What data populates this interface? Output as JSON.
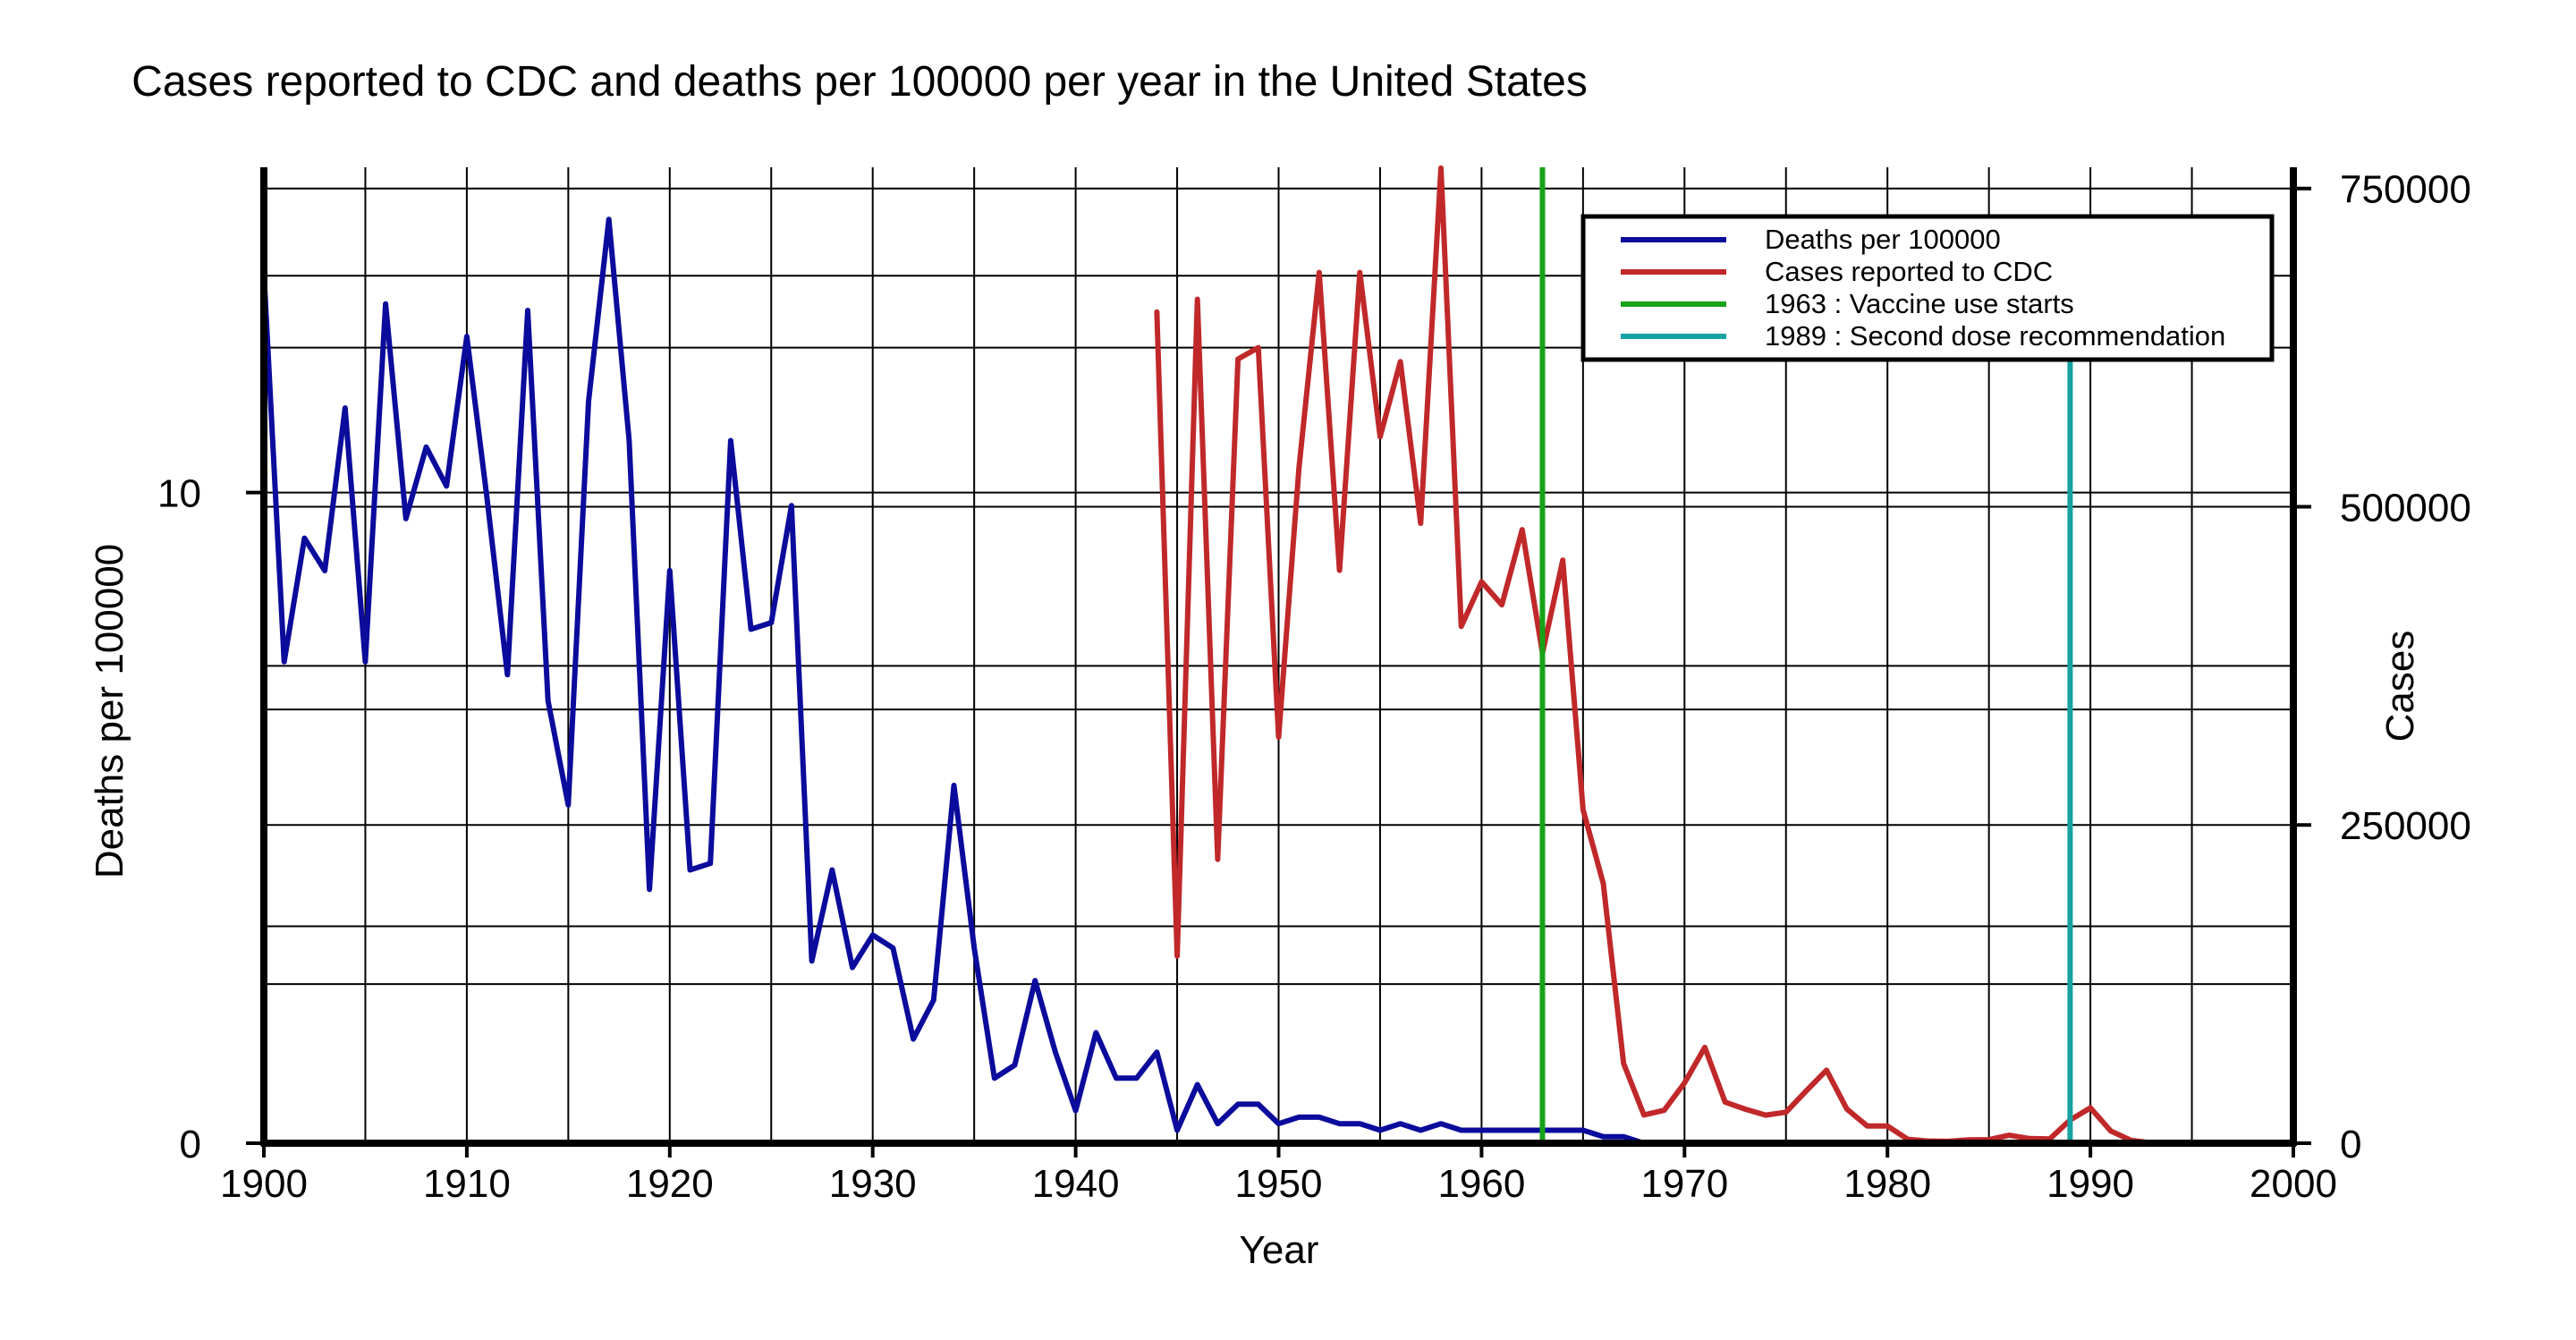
{
  "chart_data": {
    "type": "line",
    "title": "Cases reported to CDC and deaths per 100000 per year in the United States",
    "xlabel": "Year",
    "ylabel_left": "Deaths per 100000",
    "ylabel_right": "Cases",
    "xlim": [
      1900,
      2000
    ],
    "ylim_left": [
      0,
      15
    ],
    "ylim_right": [
      0,
      766666
    ],
    "x_ticks": [
      "1900",
      "1910",
      "1920",
      "1930",
      "1940",
      "1950",
      "1960",
      "1970",
      "1980",
      "1990",
      "2000"
    ],
    "left_tick_labels": [
      {
        "value": 0,
        "label": "0"
      },
      {
        "value": 10,
        "label": "10"
      }
    ],
    "right_tick_labels": [
      {
        "value": 0,
        "label": "0"
      },
      {
        "value": 250000,
        "label": "250000"
      },
      {
        "value": 500000,
        "label": "500000"
      },
      {
        "value": 750000,
        "label": "750000"
      }
    ],
    "grid": true,
    "legend_position": "top-right",
    "series": [
      {
        "name": "Deaths per 100000",
        "axis": "left",
        "color": "#0b0b9c",
        "x": [
          1900,
          1901,
          1902,
          1903,
          1904,
          1905,
          1906,
          1907,
          1908,
          1909,
          1910,
          1911,
          1912,
          1913,
          1914,
          1915,
          1916,
          1917,
          1918,
          1919,
          1920,
          1921,
          1922,
          1923,
          1924,
          1925,
          1926,
          1927,
          1928,
          1929,
          1930,
          1931,
          1932,
          1933,
          1934,
          1935,
          1936,
          1937,
          1938,
          1939,
          1940,
          1941,
          1942,
          1943,
          1944,
          1945,
          1946,
          1947,
          1948,
          1949,
          1950,
          1951,
          1952,
          1953,
          1954,
          1955,
          1956,
          1957,
          1958,
          1959,
          1960,
          1961,
          1962,
          1963,
          1964,
          1965,
          1966,
          1967,
          1968,
          1969,
          1970
        ],
        "values": [
          13.4,
          7.4,
          9.3,
          8.8,
          11.3,
          7.4,
          12.9,
          9.6,
          10.7,
          10.1,
          12.4,
          9.9,
          7.2,
          12.8,
          6.8,
          5.2,
          11.4,
          14.2,
          10.8,
          3.9,
          8.8,
          4.2,
          4.3,
          10.8,
          7.9,
          8.0,
          9.8,
          2.8,
          4.2,
          2.7,
          3.2,
          3.0,
          1.6,
          2.2,
          5.5,
          3.0,
          1.0,
          1.2,
          2.5,
          1.4,
          0.5,
          1.7,
          1.0,
          1.0,
          1.4,
          0.2,
          0.9,
          0.3,
          0.6,
          0.6,
          0.3,
          0.4,
          0.4,
          0.3,
          0.3,
          0.2,
          0.3,
          0.2,
          0.3,
          0.2,
          0.2,
          0.2,
          0.2,
          0.2,
          0.2,
          0.2,
          0.1,
          0.1,
          0.0,
          0.0,
          0.0
        ]
      },
      {
        "name": "Cases reported to CDC",
        "axis": "right",
        "color": "#c0282a",
        "x": [
          1944,
          1945,
          1946,
          1947,
          1948,
          1949,
          1950,
          1951,
          1952,
          1953,
          1954,
          1955,
          1956,
          1957,
          1958,
          1959,
          1960,
          1961,
          1962,
          1963,
          1964,
          1965,
          1966,
          1967,
          1968,
          1969,
          1970,
          1971,
          1972,
          1973,
          1974,
          1975,
          1976,
          1977,
          1978,
          1979,
          1980,
          1981,
          1982,
          1983,
          1984,
          1985,
          1986,
          1987,
          1988,
          1989,
          1990,
          1991,
          1992,
          1993
        ],
        "values": [
          653000,
          147000,
          663000,
          223000,
          616000,
          625000,
          319000,
          530000,
          684000,
          450000,
          684000,
          555000,
          614000,
          487000,
          766000,
          406000,
          441000,
          423000,
          482000,
          385000,
          458000,
          262000,
          204000,
          62705,
          22231,
          25826,
          47351,
          75290,
          32275,
          26690,
          22094,
          24374,
          41126,
          57345,
          26871,
          13597,
          13506,
          3124,
          1714,
          1497,
          2587,
          2822,
          6282,
          3655,
          3396,
          18193,
          27786,
          9643,
          2237,
          312
        ]
      }
    ],
    "vlines": [
      {
        "x": 1963,
        "label": "1963 : Vaccine use starts",
        "color": "#17a317"
      },
      {
        "x": 1989,
        "label": "1989 : Second dose recommendation",
        "color": "#16a2a2"
      }
    ]
  }
}
